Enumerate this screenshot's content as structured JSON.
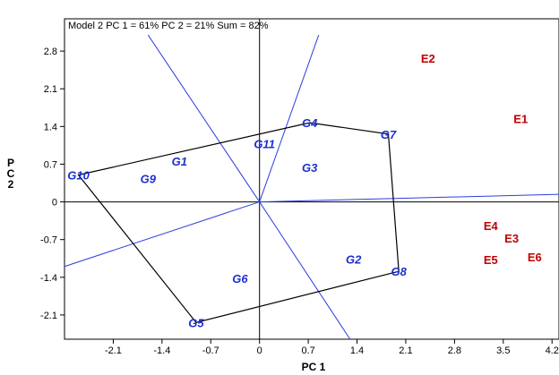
{
  "chart_data": {
    "type": "scatter",
    "title": "Model 2 PC 1 = 61% PC 2 = 21% Sum = 82%",
    "xlabel": "PC 1",
    "ylabel": "PC 2",
    "xlim": [
      -2.8,
      4.3
    ],
    "ylim": [
      -2.55,
      3.4
    ],
    "x_ticks": [
      -2.1,
      -1.4,
      -0.7,
      0,
      0.7,
      1.4,
      2.1,
      2.8,
      3.5,
      4.2
    ],
    "x_tick_labels": [
      "-2.1",
      "-1.4",
      "-0.7",
      "0",
      "0.7",
      "1.4",
      "2.1",
      "2.8",
      "3.5",
      "4.2"
    ],
    "y_ticks": [
      2.8,
      2.1,
      1.4,
      0.7,
      0,
      -0.7,
      -1.4,
      -2.1
    ],
    "y_tick_labels": [
      "2.8",
      "2.1",
      "1.4",
      "0.7",
      "0",
      "-0.7",
      "-1.4",
      "-2.1"
    ],
    "genotypes": [
      {
        "label": "G1",
        "x": -1.15,
        "y": 0.76
      },
      {
        "label": "G2",
        "x": 1.35,
        "y": -1.06
      },
      {
        "label": "G3",
        "x": 0.72,
        "y": 0.64
      },
      {
        "label": "G4",
        "x": 0.72,
        "y": 1.47
      },
      {
        "label": "G5",
        "x": -0.91,
        "y": -2.24
      },
      {
        "label": "G6",
        "x": -0.28,
        "y": -1.42
      },
      {
        "label": "G7",
        "x": 1.85,
        "y": 1.26
      },
      {
        "label": "G8",
        "x": 2.0,
        "y": -1.29
      },
      {
        "label": "G9",
        "x": -1.6,
        "y": 0.43
      },
      {
        "label": "G10",
        "x": -2.6,
        "y": 0.5
      },
      {
        "label": "G11",
        "x": 0.07,
        "y": 1.08
      }
    ],
    "environments": [
      {
        "label": "E1",
        "x": 3.75,
        "y": 1.55
      },
      {
        "label": "E2",
        "x": 2.42,
        "y": 2.67
      },
      {
        "label": "E3",
        "x": 3.62,
        "y": -0.67
      },
      {
        "label": "E4",
        "x": 3.32,
        "y": -0.44
      },
      {
        "label": "E5",
        "x": 3.32,
        "y": -1.07
      },
      {
        "label": "E6",
        "x": 3.95,
        "y": -1.02
      }
    ],
    "polygon": [
      "G10",
      "G4",
      "G7",
      "G8",
      "G5"
    ],
    "rays": [
      {
        "x": -1.6,
        "y": 3.1
      },
      {
        "x": 0.85,
        "y": 3.1
      },
      {
        "x": 4.3,
        "y": 0.14
      },
      {
        "x": -2.8,
        "y": -1.2
      },
      {
        "x": 1.3,
        "y": -2.55
      }
    ],
    "colors": {
      "genotype": "#1f2fd0",
      "environment": "#c00000",
      "ray": "#2a3ee0",
      "polygon": "#000000"
    }
  }
}
